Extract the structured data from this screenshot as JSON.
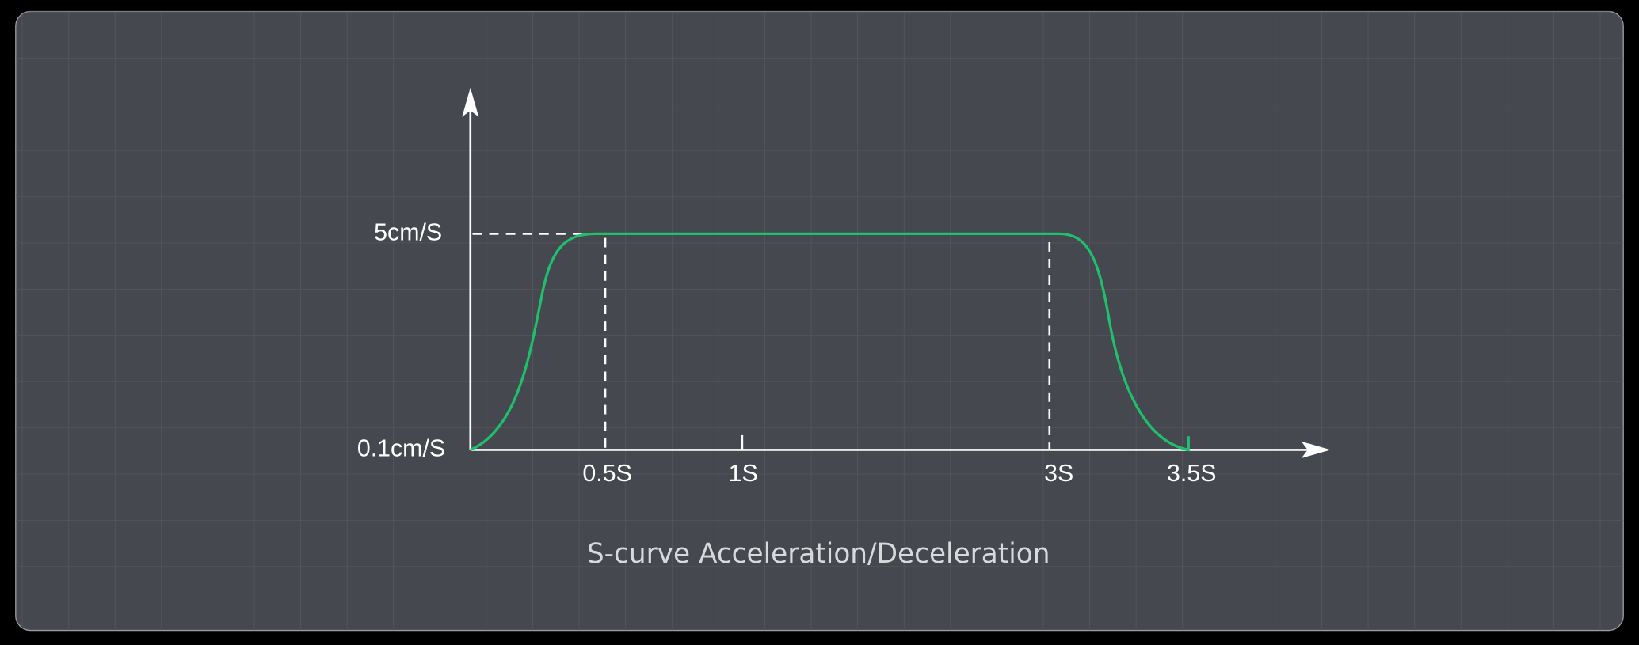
{
  "y_axis": {
    "labels": [
      "5cm/S",
      "0.1cm/S"
    ]
  },
  "x_axis": {
    "labels": [
      "0.5S",
      "1S",
      "3S",
      "3.5S"
    ]
  },
  "caption": "S-curve Acceleration/Deceleration"
}
